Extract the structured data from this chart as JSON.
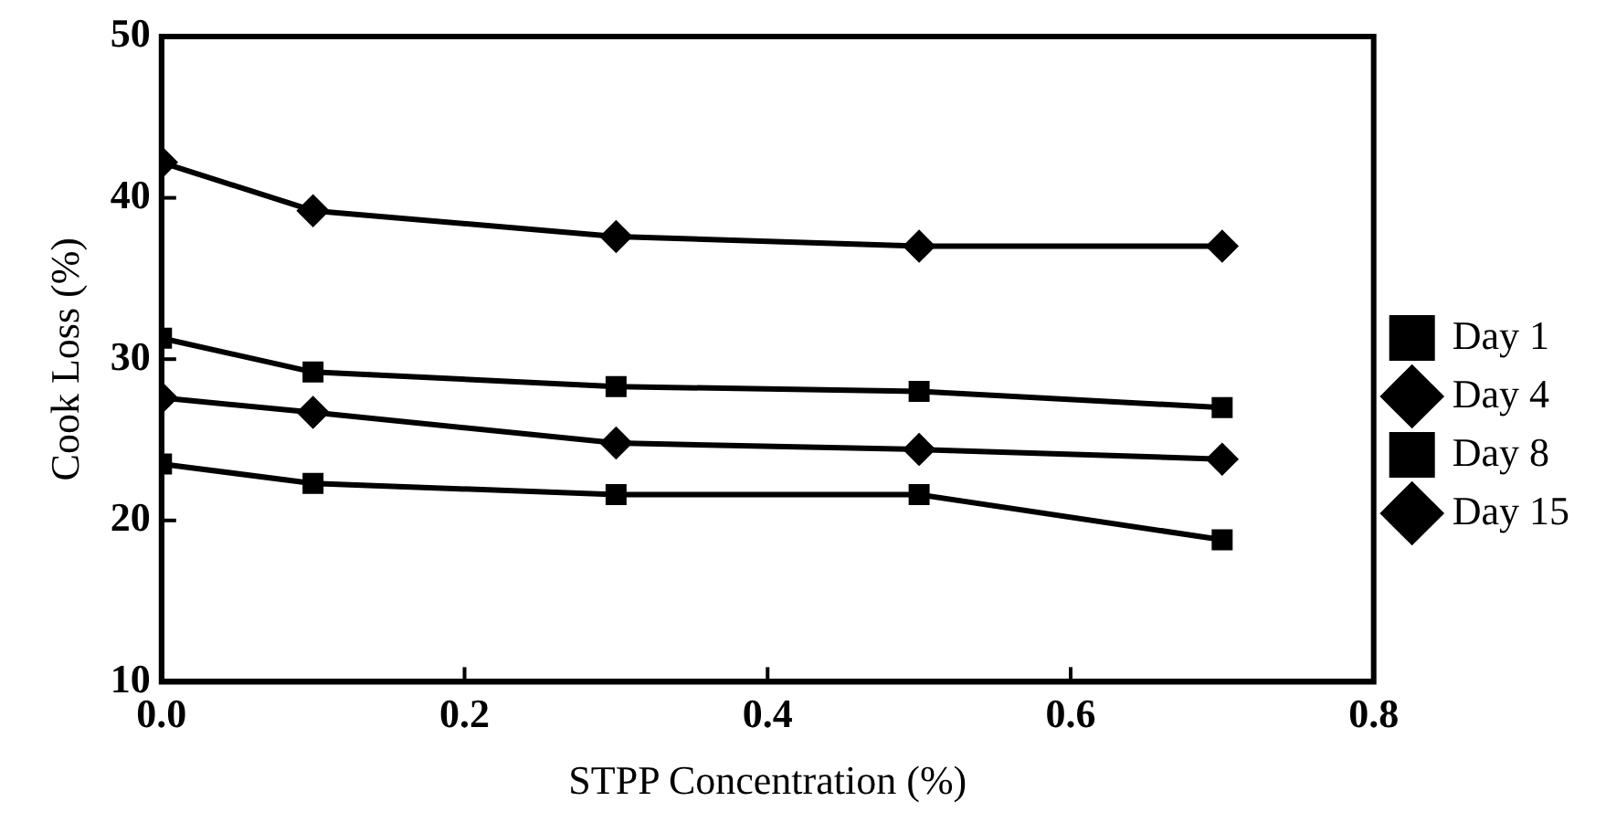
{
  "chart_data": {
    "type": "line",
    "xlabel": "STPP Concentration (%)",
    "ylabel": "Cook Loss (%)",
    "x": [
      0,
      0.1,
      0.3,
      0.5,
      0.7
    ],
    "series": [
      {
        "name": "Day 1",
        "color": "#000000",
        "marker": "square",
        "values": [
          23.5,
          22.3,
          21.6,
          21.6,
          18.8
        ]
      },
      {
        "name": "Day 4",
        "color": "#000000",
        "marker": "diamond",
        "values": [
          27.6,
          26.7,
          24.8,
          24.4,
          23.8
        ]
      },
      {
        "name": "Day 8",
        "color": "#000000",
        "marker": "square",
        "values": [
          31.3,
          29.2,
          28.3,
          28.0,
          27.0
        ]
      },
      {
        "name": "Day 15",
        "color": "#000000",
        "marker": "diamond",
        "values": [
          42.2,
          39.2,
          37.6,
          37.0,
          37.0
        ]
      }
    ],
    "xlim": [
      0,
      0.8
    ],
    "xticks": [
      {
        "value": 0,
        "label": "0.0"
      },
      {
        "value": 0.2,
        "label": "0.2"
      },
      {
        "value": 0.4,
        "label": "0.4"
      },
      {
        "value": 0.6,
        "label": "0.6"
      },
      {
        "value": 0.8,
        "label": "0.8"
      }
    ],
    "ylim": [
      10,
      50
    ],
    "yticks": [
      10,
      20,
      30,
      40,
      50
    ],
    "grid": false,
    "legend": "right",
    "line_style": "solid"
  }
}
